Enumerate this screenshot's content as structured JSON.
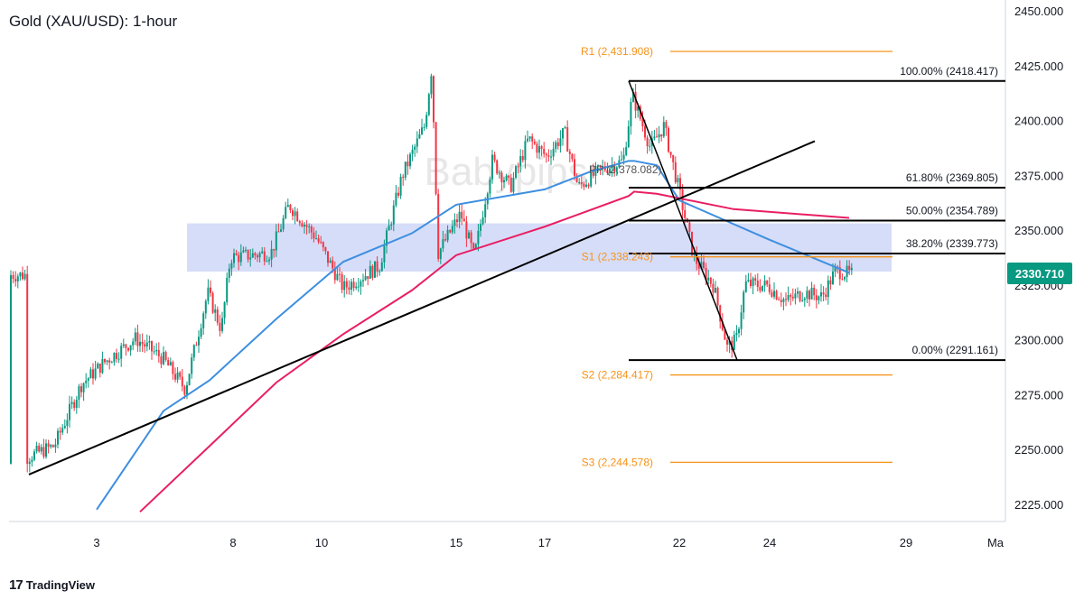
{
  "title": "Gold (XAU/USD): 1-hour",
  "watermark": "Babypips",
  "footer": {
    "logo": "17",
    "brand": "TradingView"
  },
  "chart_data": {
    "type": "candlestick",
    "symbol": "Gold (XAU/USD)",
    "timeframe": "1-hour",
    "price_axis": {
      "ticks": [
        "2450.000",
        "2425.000",
        "2400.000",
        "2375.000",
        "2350.000",
        "2325.000",
        "2300.000",
        "2275.000",
        "2250.000",
        "2225.000"
      ],
      "range": [
        2222,
        2455
      ]
    },
    "time_axis": {
      "ticks": [
        "3",
        "8",
        "10",
        "15",
        "17",
        "22",
        "24",
        "29",
        "Ma"
      ]
    },
    "current_price": {
      "value": 2330.71,
      "label": "2330.710",
      "color": "#089981"
    },
    "pivot_levels": [
      {
        "name": "R1",
        "value": 2431.908,
        "label": "R1 (2,431.908)"
      },
      {
        "name": "PP",
        "value": 2378.082,
        "label": "PP (2,378.082)"
      },
      {
        "name": "S1",
        "value": 2338.243,
        "label": "S1 (2,338.243)"
      },
      {
        "name": "S2",
        "value": 2284.417,
        "label": "S2 (2,284.417)"
      },
      {
        "name": "S3",
        "value": 2244.578,
        "label": "S3 (2,244.578)"
      }
    ],
    "fibonacci_levels": [
      {
        "ratio": "100.00%",
        "value": 2418.417,
        "label": "100.00% (2418.417)"
      },
      {
        "ratio": "61.80%",
        "value": 2369.805,
        "label": "61.80% (2369.805)"
      },
      {
        "ratio": "50.00%",
        "value": 2354.789,
        "label": "50.00% (2354.789)"
      },
      {
        "ratio": "38.20%",
        "value": 2339.773,
        "label": "38.20% (2339.773)"
      },
      {
        "ratio": "0.00%",
        "value": 2291.161,
        "label": "0.00% (2291.161)"
      }
    ],
    "zone": {
      "from": 2331.5,
      "to": 2353.5,
      "color": "#c5cff5"
    },
    "trendline": {
      "start": {
        "date": "1",
        "price": 2239
      },
      "end": {
        "date": "20",
        "price": 2391
      }
    },
    "swing_line": {
      "start": {
        "date": "19",
        "price": 2418.417
      },
      "end": {
        "date": "23",
        "price": 2291.161
      }
    },
    "moving_averages": [
      {
        "color": "#3d8fe0",
        "points": [
          [
            "3",
            2223
          ],
          [
            "5",
            2268
          ],
          [
            "7",
            2282
          ],
          [
            "9",
            2310
          ],
          [
            "11",
            2336
          ],
          [
            "13",
            2349
          ],
          [
            "15",
            2362
          ],
          [
            "17",
            2369
          ],
          [
            "18",
            2377
          ],
          [
            "19",
            2382
          ],
          [
            "20",
            2382
          ],
          [
            "21",
            2380
          ],
          [
            "22",
            2364
          ],
          [
            "24",
            2346
          ],
          [
            "25",
            2331
          ]
        ]
      },
      {
        "color": "#e91e63",
        "points": [
          [
            "4",
            2222
          ],
          [
            "7",
            2252
          ],
          [
            "9",
            2281
          ],
          [
            "11",
            2303
          ],
          [
            "13",
            2323
          ],
          [
            "15",
            2339
          ],
          [
            "17",
            2352
          ],
          [
            "19",
            2366
          ],
          [
            "20",
            2368
          ],
          [
            "21",
            2367
          ],
          [
            "23",
            2360
          ],
          [
            "25",
            2356
          ]
        ]
      }
    ],
    "colors": {
      "up": "#089981",
      "down": "#f23645",
      "fib": "#000000",
      "pivot": "#f7931a"
    }
  }
}
